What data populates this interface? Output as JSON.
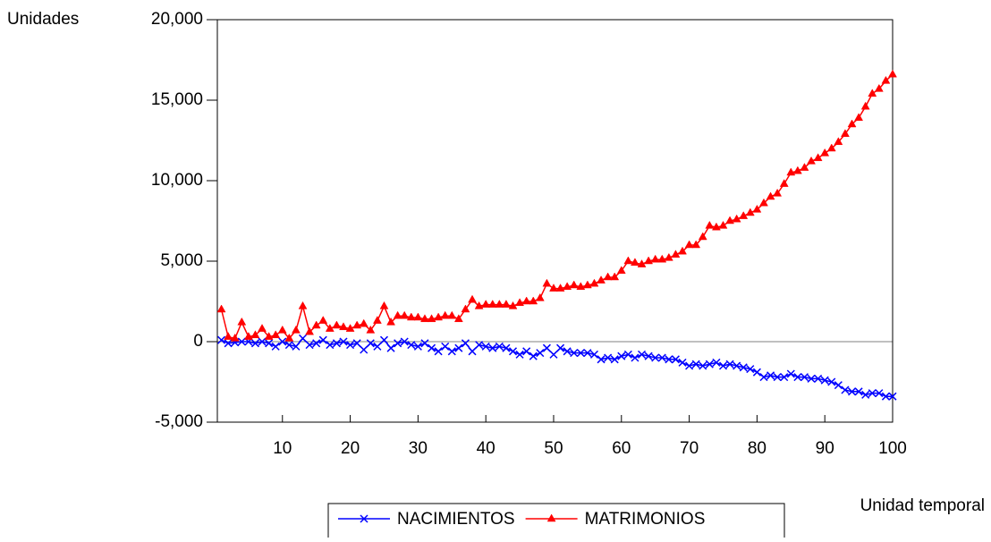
{
  "chart_data": {
    "type": "line",
    "y_label": "Unidades",
    "x_label": "Unidad temporal",
    "x": [
      1,
      2,
      3,
      4,
      5,
      6,
      7,
      8,
      9,
      10,
      11,
      12,
      13,
      14,
      15,
      16,
      17,
      18,
      19,
      20,
      21,
      22,
      23,
      24,
      25,
      26,
      27,
      28,
      29,
      30,
      31,
      32,
      33,
      34,
      35,
      36,
      37,
      38,
      39,
      40,
      41,
      42,
      43,
      44,
      45,
      46,
      47,
      48,
      49,
      50,
      51,
      52,
      53,
      54,
      55,
      56,
      57,
      58,
      59,
      60,
      61,
      62,
      63,
      64,
      65,
      66,
      67,
      68,
      69,
      70,
      71,
      72,
      73,
      74,
      75,
      76,
      77,
      78,
      79,
      80,
      81,
      82,
      83,
      84,
      85,
      86,
      87,
      88,
      89,
      90,
      91,
      92,
      93,
      94,
      95,
      96,
      97,
      98,
      99,
      100
    ],
    "series": [
      {
        "name": "NACIMIENTOS",
        "color": "#0000ff",
        "marker": "x",
        "values": [
          100,
          -100,
          -50,
          0,
          0,
          -100,
          0,
          -100,
          -300,
          0,
          -200,
          -300,
          200,
          -200,
          -100,
          100,
          -200,
          -100,
          0,
          -200,
          -100,
          -500,
          -100,
          -300,
          100,
          -400,
          -100,
          0,
          -200,
          -300,
          -100,
          -400,
          -600,
          -300,
          -600,
          -400,
          -100,
          -600,
          -200,
          -300,
          -400,
          -300,
          -400,
          -600,
          -800,
          -600,
          -900,
          -700,
          -400,
          -800,
          -400,
          -600,
          -700,
          -700,
          -700,
          -800,
          -1100,
          -1000,
          -1100,
          -900,
          -800,
          -1000,
          -800,
          -900,
          -1000,
          -1000,
          -1100,
          -1100,
          -1300,
          -1500,
          -1400,
          -1500,
          -1400,
          -1300,
          -1500,
          -1400,
          -1500,
          -1600,
          -1700,
          -1900,
          -2200,
          -2100,
          -2200,
          -2200,
          -2000,
          -2200,
          -2200,
          -2300,
          -2300,
          -2400,
          -2500,
          -2700,
          -3000,
          -3100,
          -3100,
          -3300,
          -3200,
          -3200,
          -3400,
          -3400
        ]
      },
      {
        "name": "MATRIMONIOS",
        "color": "#ff0000",
        "marker": "triangle",
        "values": [
          2000,
          300,
          200,
          1200,
          300,
          400,
          800,
          300,
          400,
          700,
          200,
          700,
          2200,
          600,
          1000,
          1300,
          800,
          1000,
          900,
          800,
          1000,
          1100,
          700,
          1300,
          2200,
          1200,
          1600,
          1600,
          1500,
          1500,
          1400,
          1400,
          1500,
          1600,
          1600,
          1400,
          2000,
          2600,
          2200,
          2300,
          2300,
          2300,
          2300,
          2200,
          2400,
          2500,
          2500,
          2700,
          3600,
          3300,
          3300,
          3400,
          3500,
          3400,
          3500,
          3600,
          3800,
          4000,
          4000,
          4400,
          5000,
          4900,
          4800,
          5000,
          5100,
          5100,
          5200,
          5400,
          5600,
          6000,
          6000,
          6500,
          7200,
          7100,
          7200,
          7500,
          7600,
          7800,
          8000,
          8200,
          8600,
          9000,
          9200,
          9800,
          10500,
          10600,
          10800,
          11200,
          11400,
          11700,
          12000,
          12400,
          12900,
          13500,
          13900,
          14600,
          15400,
          15700,
          16200,
          16600
        ]
      }
    ],
    "xlim": [
      0.4,
      100
    ],
    "ylim": [
      -5000,
      20000
    ],
    "xticks": [
      10,
      20,
      30,
      40,
      50,
      60,
      70,
      80,
      90,
      100
    ],
    "yticks": [
      {
        "value": -5000,
        "label": "-5,000"
      },
      0,
      {
        "value": 5000,
        "label": "5,000"
      },
      {
        "value": 10000,
        "label": "10,000"
      },
      {
        "value": 15000,
        "label": "15,000"
      },
      {
        "value": 20000,
        "label": "20,000"
      }
    ],
    "zero_line": true,
    "legend": "bottom"
  }
}
